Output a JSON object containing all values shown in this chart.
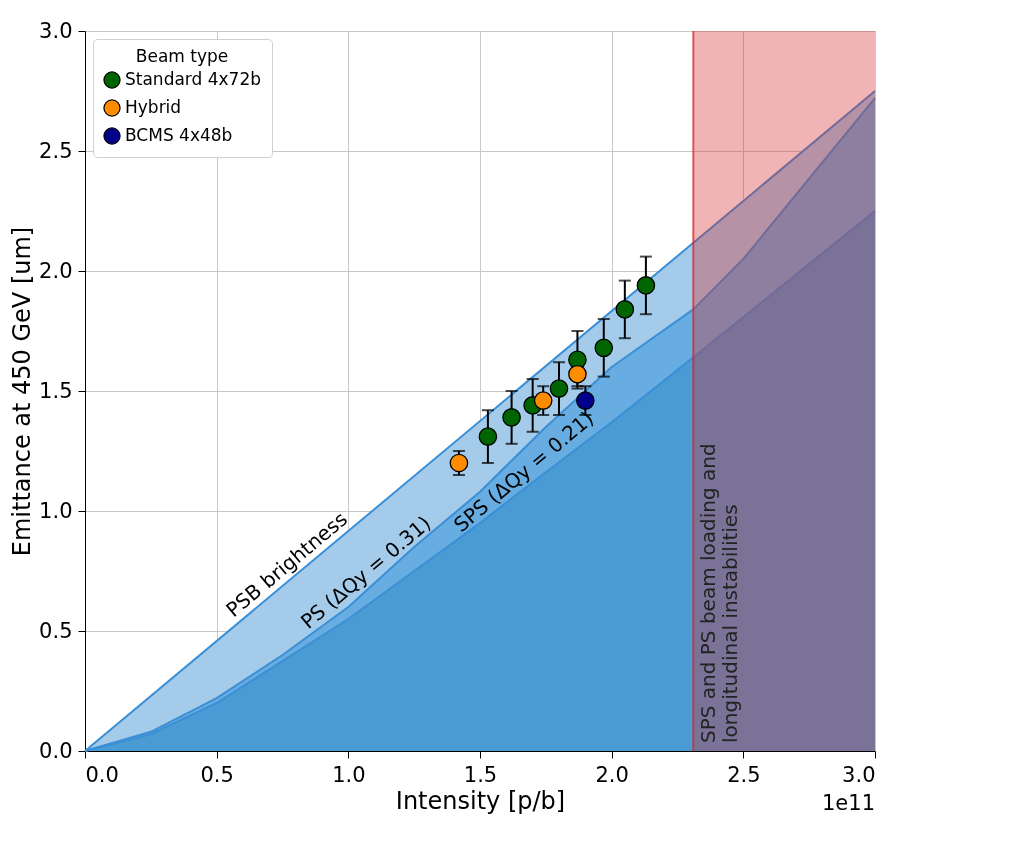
{
  "chart_data": {
    "type": "scatter",
    "xlabel": "Intensity [p/b]",
    "ylabel": "Emittance at 450 GeV [um]",
    "legend_title": "Beam type",
    "legend": "top left",
    "grid": true,
    "ref_lines": [
      {
        "axis": "x",
        "value": 2.31,
        "color": "#d62728"
      }
    ],
    "xlim": [
      0,
      3.0
    ],
    "ylim": [
      0,
      3.0
    ],
    "xticks": [
      {
        "value": 0,
        "label": "0.0"
      },
      0.5,
      {
        "value": 1,
        "label": "1.0"
      },
      1.5,
      {
        "value": 2,
        "label": "2.0"
      },
      2.5,
      {
        "value": 3,
        "label": "3.0"
      }
    ],
    "yticks": [
      {
        "value": 0,
        "label": "0.0"
      },
      0.5,
      {
        "value": 1,
        "label": "1.0"
      },
      1.5,
      {
        "value": 2,
        "label": "2.0"
      },
      2.5,
      {
        "value": 3,
        "label": "3.0"
      }
    ],
    "series": [
      {
        "type": "area",
        "color": "#a5cbeb",
        "x": [
          0,
          3.0
        ],
        "values": [
          0,
          2.75
        ]
      },
      {
        "type": "area",
        "color": "#68ade1",
        "x": [
          0,
          0.25,
          0.5,
          0.75,
          1.0,
          1.1,
          1.25,
          1.5,
          1.75,
          2.0,
          2.31,
          2.5,
          3.0
        ],
        "values": [
          0,
          0.08,
          0.22,
          0.4,
          0.6,
          0.7,
          0.85,
          1.08,
          1.35,
          1.6,
          1.84,
          2.05,
          2.72
        ]
      },
      {
        "type": "area",
        "color": "#4a9ad4",
        "x": [
          0,
          0.25,
          0.5,
          1.0,
          1.5,
          1.7,
          2.0,
          2.31,
          3.0
        ],
        "values": [
          0,
          0.07,
          0.2,
          0.55,
          0.95,
          1.12,
          1.37,
          1.64,
          2.25
        ]
      },
      {
        "name": "Standard 4x72b",
        "color": "#006400",
        "x": [
          1.53,
          1.62,
          1.7,
          1.8,
          1.87,
          1.97,
          2.05,
          2.13
        ],
        "values": [
          1.31,
          1.39,
          1.44,
          1.51,
          1.63,
          1.68,
          1.84,
          1.94
        ],
        "errors": [
          0.11,
          0.11,
          0.11,
          0.11,
          0.12,
          0.12,
          0.12,
          0.12
        ]
      },
      {
        "name": "Hybrid",
        "color": "#ff8c00",
        "x": [
          1.42,
          1.74,
          1.87
        ],
        "values": [
          1.2,
          1.46,
          1.57
        ],
        "errors": [
          0.05,
          0.06,
          0.05
        ]
      },
      {
        "name": "BCMS 4x48b",
        "color": "#00008b",
        "x": [
          1.9
        ],
        "values": [
          1.46
        ],
        "errors": [
          0.06
        ]
      }
    ],
    "bands": [
      {
        "axis": "x",
        "from": 2.31,
        "to": 3.0,
        "label": "SPS and PS beam loading and\nlongitudinal instabilities",
        "color": "#d62728"
      }
    ],
    "annotations": [
      {
        "text": "PSB brightness",
        "x": 0.8,
        "y": 0.733
      },
      {
        "text": "PS (ΔQy = 0.31)",
        "x": 1.1,
        "y": 0.7
      },
      {
        "text": "SPS (ΔQy = 0.21)",
        "x": 1.7,
        "y": 1.12
      },
      "1e11"
    ]
  }
}
